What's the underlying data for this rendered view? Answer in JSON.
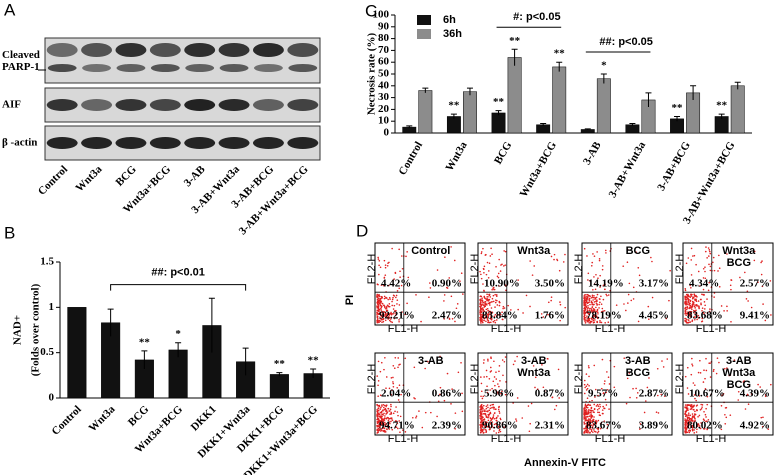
{
  "panels": {
    "a": "A",
    "b": "B",
    "c": "C",
    "d": "D"
  },
  "blot": {
    "row_labels": [
      [
        "Cleaved",
        "PARP-1"
      ],
      [
        "AIF"
      ],
      [
        "β -actin"
      ]
    ],
    "lanes": [
      "Control",
      "Wnt3a",
      "BCG",
      "Wnt3a+BCG",
      "3-AB",
      "3-AB+Wnt3a",
      "3-AB+BCG",
      "3-AB+Wnt3a+BCG"
    ]
  },
  "chart_data": [
    {
      "type": "bar",
      "ylabel": [
        "NAD+",
        "(Folds over control)"
      ],
      "categories": [
        "Control",
        "Wnt3a",
        "BCG",
        "Wnt3a+BCG",
        "DKK1",
        "DKK1+Wnt3a",
        "DKK1+BCG",
        "DKK1+Wnt3a+BCG"
      ],
      "values": [
        1.0,
        0.83,
        0.42,
        0.53,
        0.8,
        0.4,
        0.26,
        0.27
      ],
      "errors": [
        null,
        0.15,
        0.1,
        0.08,
        0.3,
        0.15,
        0.02,
        0.05
      ],
      "significance": [
        null,
        null,
        "**",
        "*",
        null,
        null,
        "**",
        "**"
      ],
      "color": "#111111",
      "ylim": [
        0,
        1.5
      ],
      "yticks": [
        0,
        0.5,
        1,
        1.5
      ],
      "annotations": [
        {
          "text": "##: p<0.01",
          "from": 1,
          "to": 5
        }
      ]
    },
    {
      "type": "grouped-bar",
      "ylabel": "Necrosis rate (%)",
      "categories": [
        "Control",
        "Wnt3a",
        "BCG",
        "Wnt3a+BCG",
        "3-AB",
        "3-AB+Wnt3a",
        "3-AB+BCG",
        "3-AB+Wnt3a+BCG"
      ],
      "series": [
        {
          "name": "6h",
          "color": "#111111",
          "values": [
            5,
            14,
            17,
            7,
            3,
            7,
            12,
            14
          ],
          "errors": [
            1,
            2,
            2,
            1,
            0.5,
            1,
            2,
            2
          ],
          "significance": [
            null,
            "**",
            "**",
            null,
            null,
            null,
            "**",
            "**"
          ]
        },
        {
          "name": "36h",
          "color": "#8c8c8c",
          "values": [
            36,
            35,
            64,
            56,
            46,
            28,
            34,
            40
          ],
          "errors": [
            2,
            3,
            7,
            4,
            4,
            6,
            6,
            3
          ],
          "significance": [
            null,
            null,
            "**",
            "**",
            "*",
            null,
            null,
            null
          ]
        }
      ],
      "ylim": [
        0,
        100
      ],
      "yticks": [
        0,
        10,
        20,
        30,
        40,
        50,
        60,
        70,
        80,
        90,
        100
      ],
      "annotations": [
        {
          "text": "#: p<0.05",
          "from": 2,
          "to": 3
        },
        {
          "text": "##: p<0.05",
          "from": 4,
          "to": 5
        }
      ]
    }
  ],
  "flow": {
    "y_axis": "PI",
    "x_axis": "Annexin-V FITC",
    "channel_y": "FL2-H",
    "channel_x": "FL1-H",
    "plots": [
      {
        "title": [
          "Control"
        ],
        "ul": "4.42%",
        "ur": "0.90%",
        "ll": "92.21%",
        "lr": "2.47%"
      },
      {
        "title": [
          "Wnt3a"
        ],
        "ul": "10.90%",
        "ur": "3.50%",
        "ll": "83.84%",
        "lr": "1.76%"
      },
      {
        "title": [
          "BCG"
        ],
        "ul": "14.19%",
        "ur": "3.17%",
        "ll": "78.19%",
        "lr": "4.45%"
      },
      {
        "title": [
          "Wnt3a",
          "BCG"
        ],
        "ul": "4.34%",
        "ur": "2.57%",
        "ll": "83.68%",
        "lr": "9.41%"
      },
      {
        "title": [
          "3-AB"
        ],
        "ul": "2.04%",
        "ur": "0.86%",
        "ll": "94.71%",
        "lr": "2.39%"
      },
      {
        "title": [
          "3-AB",
          "Wnt3a"
        ],
        "ul": "5.96%",
        "ur": "0.87%",
        "ll": "90.86%",
        "lr": "2.31%"
      },
      {
        "title": [
          "3-AB",
          "BCG"
        ],
        "ul": "9.57%",
        "ur": "2.87%",
        "ll": "83.67%",
        "lr": "3.89%"
      },
      {
        "title": [
          "3-AB",
          "Wnt3a",
          "BCG"
        ],
        "ul": "10.67%",
        "ur": "4.39%",
        "ll": "80.02%",
        "lr": "4.92%"
      }
    ]
  }
}
